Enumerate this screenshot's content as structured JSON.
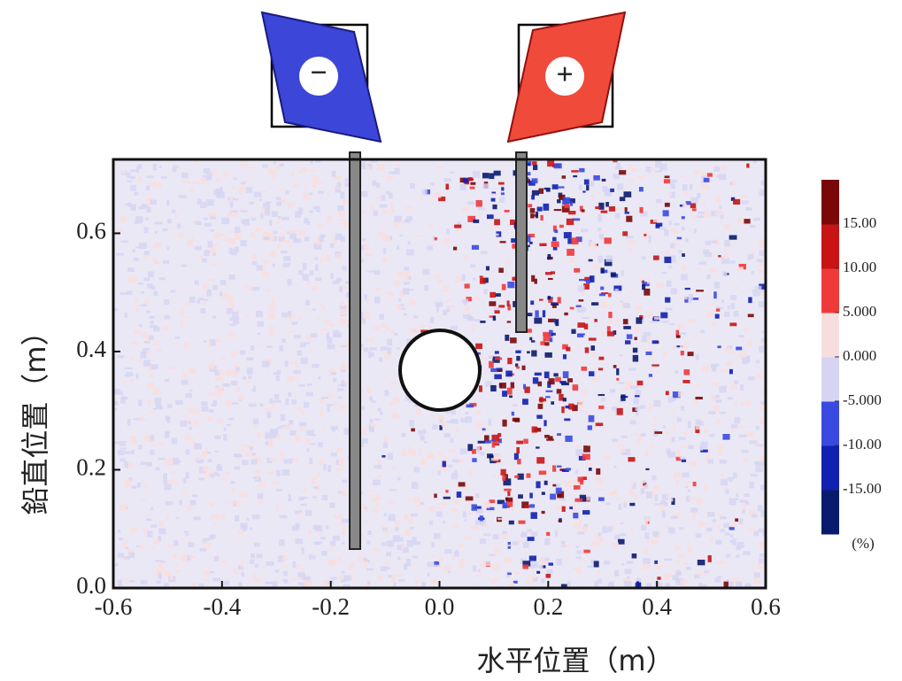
{
  "chart_data": {
    "type": "heatmap",
    "xlabel": "水平位置（m）",
    "ylabel": "鉛直位置（m）",
    "xlim": [
      -0.6,
      0.6
    ],
    "ylim": [
      0,
      0.725
    ],
    "xticks": [
      -0.6,
      -0.4,
      -0.2,
      {
        "value": 0,
        "label": "0.0"
      },
      0.2,
      0.4,
      0.6
    ],
    "yticks": [
      {
        "value": 0,
        "label": "0.0"
      },
      0.2,
      0.4,
      0.6
    ],
    "colorbar": {
      "lim": [
        -20,
        20
      ],
      "ticks": [
        {
          "value": 15,
          "label": "15.00"
        },
        {
          "value": 10,
          "label": "10.00"
        },
        {
          "value": 5,
          "label": "5.000"
        },
        {
          "value": 0,
          "label": "0.000"
        },
        {
          "value": -5,
          "label": "-5.000"
        },
        {
          "value": -10,
          "label": "-10.00"
        },
        {
          "value": -15,
          "label": "-15.00"
        }
      ],
      "colors": [
        "#0a1a6e",
        "#1020b0",
        "#3a4ae0",
        "#d6d4f2",
        "#f7dede",
        "#f03a3a",
        "#c81414",
        "#7a0808"
      ],
      "unit": "(%)"
    },
    "annotations": [
      "−",
      "+"
    ]
  }
}
